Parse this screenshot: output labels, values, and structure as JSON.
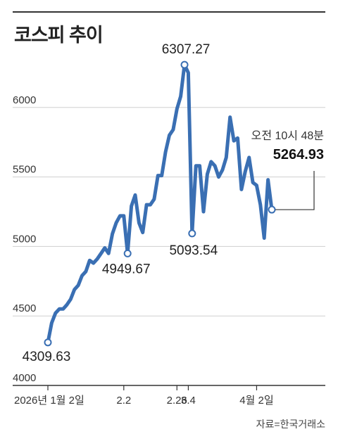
{
  "chart_data": {
    "type": "line",
    "title": "코스피 추이",
    "source": "자료=한국거래소",
    "ylim": [
      4000,
      6500
    ],
    "yticks": [
      4000,
      4500,
      5000,
      5500,
      6000
    ],
    "ytick_labels": [
      "4000",
      "4500",
      "5000",
      "5500",
      "6000"
    ],
    "grid": true,
    "xticks": [
      {
        "label": "2026년 1월 2일",
        "index": 0
      },
      {
        "label": "2.2",
        "index": 20
      },
      {
        "label": "2.26",
        "index": 34
      },
      {
        "label": "3.4",
        "index": 37
      },
      {
        "label": "4월 2일",
        "index": 55
      }
    ],
    "series": [
      {
        "color": "#3a6fb3",
        "values": [
          4309.63,
          4450,
          4520,
          4550,
          4550,
          4580,
          4620,
          4690,
          4720,
          4790,
          4820,
          4900,
          4880,
          4910,
          4950,
          4990,
          4950,
          5090,
          5170,
          5220,
          5220,
          4949.67,
          5290,
          5370,
          5170,
          5100,
          5300,
          5300,
          5340,
          5510,
          5510,
          5680,
          5800,
          5840,
          5990,
          6080,
          6307.27,
          6250,
          5093.54,
          5580,
          5580,
          5250,
          5520,
          5610,
          5580,
          5500,
          5550,
          5640,
          5930,
          5760,
          5780,
          5410,
          5540,
          5640,
          5460,
          5440,
          5300,
          5060,
          5480,
          5264.93
        ]
      }
    ],
    "annotations": [
      {
        "label": "4309.63",
        "index": 0,
        "value": 4309.63
      },
      {
        "label": "4949.67",
        "index": 21,
        "value": 4949.67
      },
      {
        "label": "6307.27",
        "index": 36,
        "value": 6307.27
      },
      {
        "label": "5093.54",
        "index": 38,
        "value": 5093.54
      },
      {
        "label": "오전 10시 48분",
        "value_label": "5264.93",
        "index": 59,
        "value": 5264.93
      }
    ]
  }
}
